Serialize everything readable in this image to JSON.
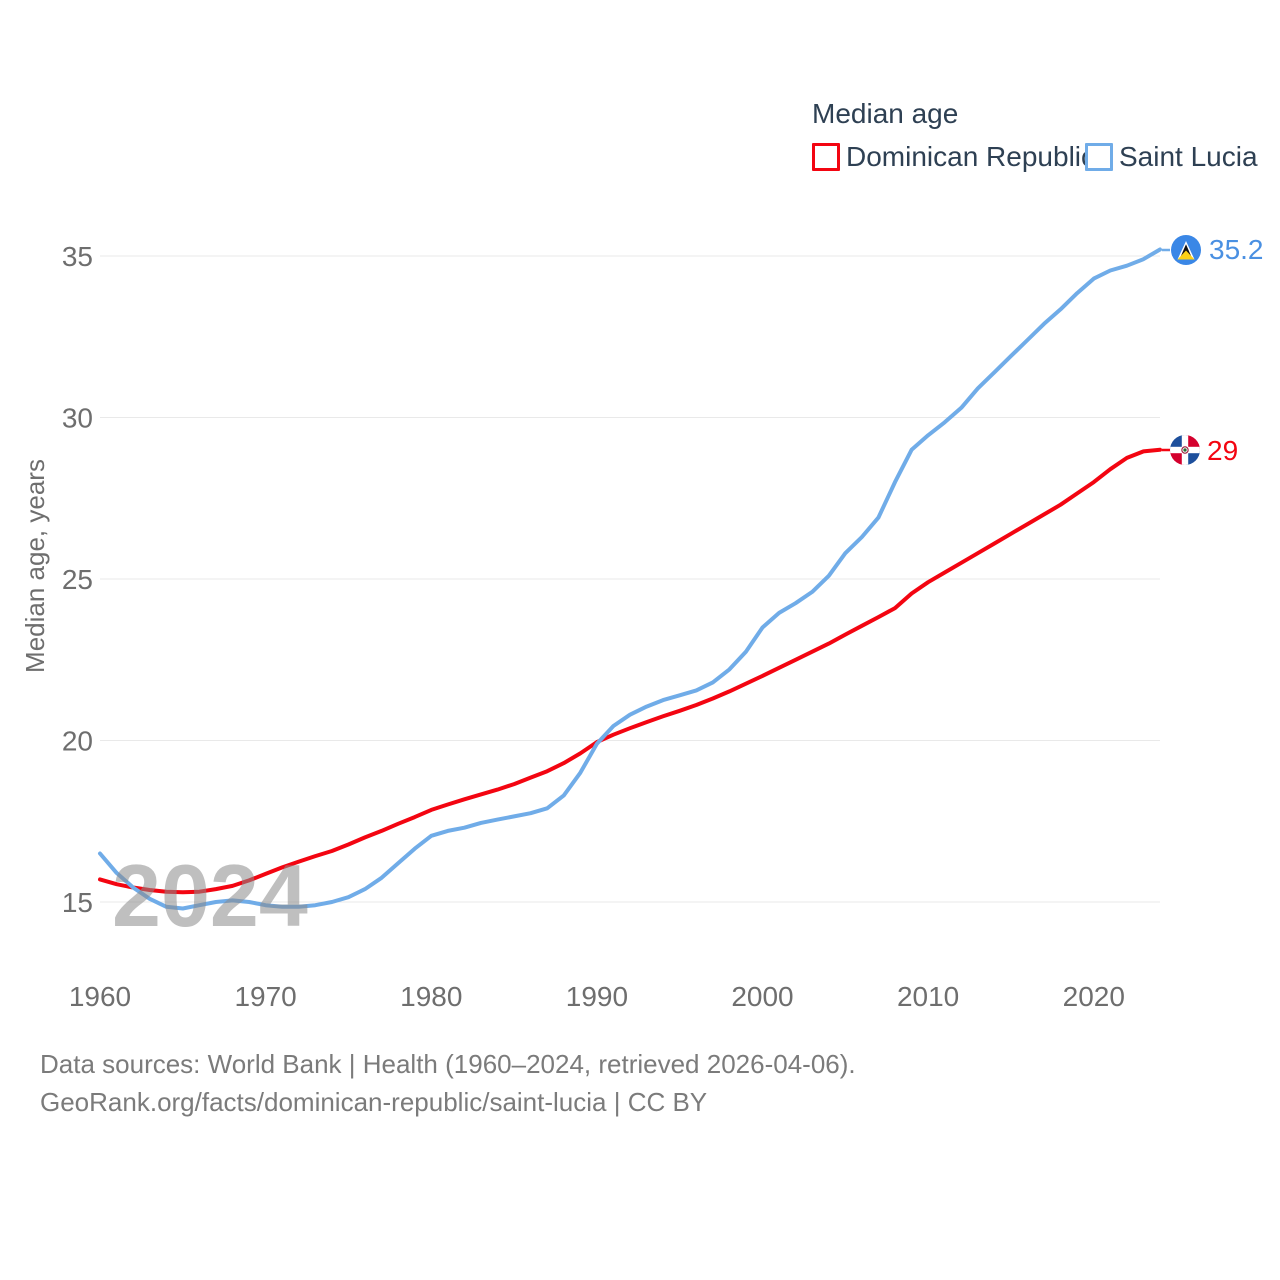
{
  "legend": {
    "title": "Median age",
    "items": [
      {
        "label": "Dominican Republic",
        "color": "#f30511"
      },
      {
        "label": "Saint Lucia",
        "color": "#70ace8"
      }
    ]
  },
  "end_labels": {
    "saint_lucia": "35.2",
    "dominican_republic": "29"
  },
  "watermark": "2024",
  "footer": {
    "line1": "Data sources: World Bank | Health (1960–2024, retrieved 2026-04-06).",
    "line2": "GeoRank.org/facts/dominican-republic/saint-lucia | CC BY"
  },
  "chart_data": {
    "type": "line",
    "title": "Median age",
    "xlabel": "",
    "ylabel": "Median age, years",
    "x_start": 1960,
    "x_end": 2024,
    "x_step": 1,
    "x_ticks": [
      1960,
      1970,
      1980,
      1990,
      2000,
      2010,
      2020
    ],
    "y_ticks": [
      15,
      20,
      25,
      30,
      35
    ],
    "ylim": [
      13.9,
      36.1
    ],
    "grid": true,
    "legend_position": "top-right",
    "series": [
      {
        "name": "Dominican Republic",
        "color": "#f30511",
        "end_value_label": "29",
        "values": [
          15.7,
          15.55,
          15.45,
          15.37,
          15.32,
          15.3,
          15.32,
          15.4,
          15.5,
          15.67,
          15.87,
          16.07,
          16.25,
          16.42,
          16.58,
          16.78,
          17.0,
          17.2,
          17.42,
          17.63,
          17.85,
          18.02,
          18.18,
          18.33,
          18.48,
          18.65,
          18.85,
          19.05,
          19.3,
          19.6,
          19.95,
          20.18,
          20.38,
          20.57,
          20.75,
          20.92,
          21.1,
          21.3,
          21.52,
          21.76,
          22.0,
          22.25,
          22.5,
          22.75,
          23.0,
          23.28,
          23.55,
          23.82,
          24.1,
          24.55,
          24.9,
          25.2,
          25.5,
          25.8,
          26.1,
          26.4,
          26.7,
          27.0,
          27.3,
          27.65,
          28.0,
          28.4,
          28.75,
          28.95,
          29.0
        ]
      },
      {
        "name": "Saint Lucia",
        "color": "#70ace8",
        "end_value_label": "35.2",
        "values": [
          16.5,
          15.9,
          15.45,
          15.1,
          14.85,
          14.8,
          14.9,
          15.0,
          15.05,
          15.0,
          14.9,
          14.85,
          14.85,
          14.9,
          15.0,
          15.15,
          15.4,
          15.75,
          16.2,
          16.65,
          17.05,
          17.2,
          17.3,
          17.45,
          17.55,
          17.65,
          17.75,
          17.9,
          18.3,
          19.0,
          19.9,
          20.45,
          20.8,
          21.05,
          21.25,
          21.4,
          21.55,
          21.8,
          22.2,
          22.75,
          23.5,
          23.95,
          24.25,
          24.6,
          25.1,
          25.8,
          26.3,
          26.9,
          28.0,
          29.0,
          29.45,
          29.85,
          30.3,
          30.9,
          31.4,
          31.9,
          32.4,
          32.9,
          33.35,
          33.85,
          34.3,
          34.55,
          34.7,
          34.9,
          35.2
        ]
      }
    ]
  }
}
